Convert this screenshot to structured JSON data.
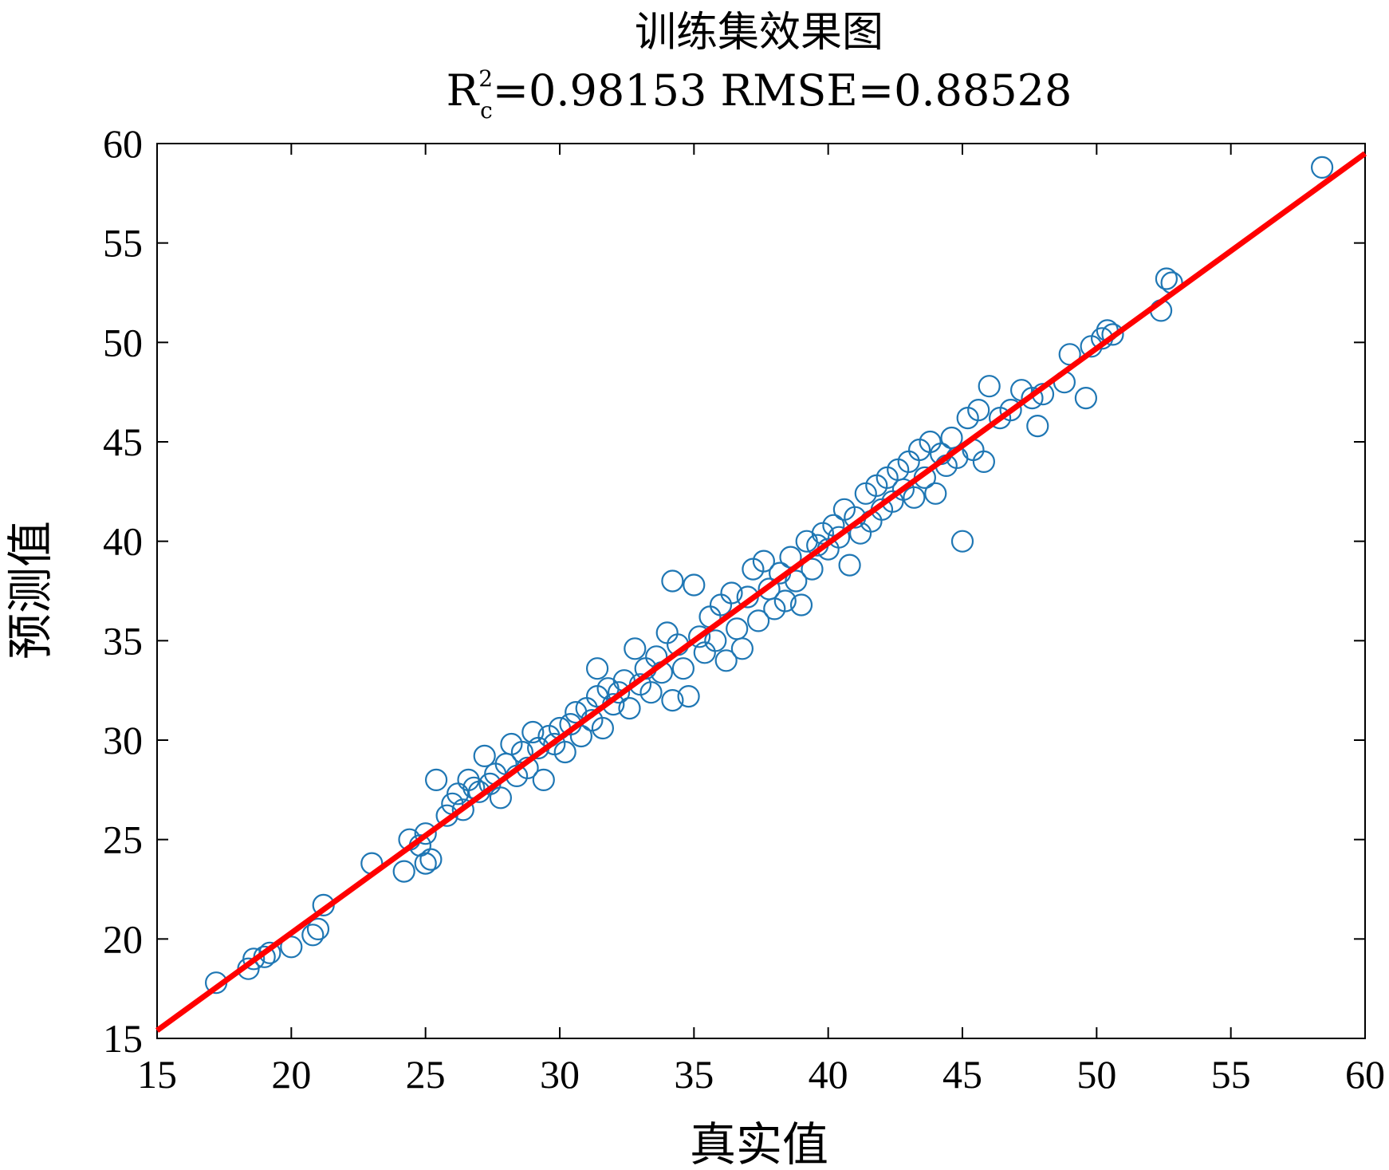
{
  "chart_data": {
    "type": "scatter",
    "title": "训练集效果图",
    "subtitle": {
      "r_label": "R",
      "r_sub": "c",
      "r_sup": "2",
      "r_value": "=0.98153 RMSE=0.88528"
    },
    "xlabel": "真实值",
    "ylabel": "预测值",
    "xlim": [
      15,
      60
    ],
    "ylim": [
      15,
      60
    ],
    "xticks": [
      15,
      20,
      25,
      30,
      35,
      40,
      45,
      50,
      55,
      60
    ],
    "yticks": [
      15,
      20,
      25,
      30,
      35,
      40,
      45,
      50,
      55,
      60
    ],
    "grid": false,
    "colors": {
      "points": "#1f77b4",
      "fit_line": "#ff0000",
      "axes": "#000000"
    },
    "fit_line": {
      "x": [
        15,
        60
      ],
      "y": [
        15.4,
        59.5
      ]
    },
    "series": [
      {
        "type": "scatter",
        "marker": "circle-open",
        "points": [
          [
            17.2,
            17.8
          ],
          [
            18.4,
            18.5
          ],
          [
            18.6,
            19.0
          ],
          [
            19.0,
            19.1
          ],
          [
            19.2,
            19.3
          ],
          [
            20.0,
            19.6
          ],
          [
            20.8,
            20.2
          ],
          [
            21.0,
            20.5
          ],
          [
            21.2,
            21.7
          ],
          [
            23.0,
            23.8
          ],
          [
            24.2,
            23.4
          ],
          [
            24.4,
            25.0
          ],
          [
            24.8,
            24.7
          ],
          [
            25.0,
            25.3
          ],
          [
            25.0,
            23.8
          ],
          [
            25.2,
            24.0
          ],
          [
            25.4,
            28.0
          ],
          [
            25.8,
            26.2
          ],
          [
            26.0,
            26.8
          ],
          [
            26.2,
            27.3
          ],
          [
            26.4,
            26.5
          ],
          [
            26.6,
            28.0
          ],
          [
            26.8,
            27.6
          ],
          [
            27.0,
            27.4
          ],
          [
            27.2,
            29.2
          ],
          [
            27.4,
            27.8
          ],
          [
            27.6,
            28.3
          ],
          [
            27.8,
            27.1
          ],
          [
            28.0,
            28.8
          ],
          [
            28.2,
            29.8
          ],
          [
            28.4,
            28.2
          ],
          [
            28.6,
            29.4
          ],
          [
            28.8,
            28.6
          ],
          [
            29.0,
            30.4
          ],
          [
            29.2,
            29.6
          ],
          [
            29.4,
            28.0
          ],
          [
            29.6,
            30.2
          ],
          [
            29.8,
            29.8
          ],
          [
            30.0,
            30.6
          ],
          [
            30.2,
            29.4
          ],
          [
            30.4,
            30.8
          ],
          [
            30.6,
            31.4
          ],
          [
            30.8,
            30.2
          ],
          [
            31.0,
            31.6
          ],
          [
            31.2,
            31.0
          ],
          [
            31.4,
            32.2
          ],
          [
            31.6,
            30.6
          ],
          [
            31.8,
            32.6
          ],
          [
            31.4,
            33.6
          ],
          [
            32.0,
            31.8
          ],
          [
            32.2,
            32.4
          ],
          [
            32.4,
            33.0
          ],
          [
            32.6,
            31.6
          ],
          [
            32.8,
            34.6
          ],
          [
            33.0,
            32.8
          ],
          [
            33.2,
            33.6
          ],
          [
            33.4,
            32.4
          ],
          [
            33.6,
            34.2
          ],
          [
            33.8,
            33.4
          ],
          [
            34.0,
            35.4
          ],
          [
            34.2,
            32.0
          ],
          [
            34.4,
            34.8
          ],
          [
            34.6,
            33.6
          ],
          [
            34.8,
            32.2
          ],
          [
            34.2,
            38.0
          ],
          [
            35.0,
            37.8
          ],
          [
            35.2,
            35.2
          ],
          [
            35.4,
            34.4
          ],
          [
            35.6,
            36.2
          ],
          [
            35.8,
            35.0
          ],
          [
            36.0,
            36.8
          ],
          [
            36.2,
            34.0
          ],
          [
            36.4,
            37.4
          ],
          [
            36.6,
            35.6
          ],
          [
            36.8,
            34.6
          ],
          [
            37.0,
            37.2
          ],
          [
            37.2,
            38.6
          ],
          [
            37.4,
            36.0
          ],
          [
            37.6,
            39.0
          ],
          [
            37.8,
            37.6
          ],
          [
            38.0,
            36.6
          ],
          [
            38.2,
            38.4
          ],
          [
            38.4,
            37.0
          ],
          [
            38.6,
            39.2
          ],
          [
            38.8,
            38.0
          ],
          [
            39.0,
            36.8
          ],
          [
            39.2,
            40.0
          ],
          [
            39.4,
            38.6
          ],
          [
            39.6,
            39.8
          ],
          [
            39.8,
            40.4
          ],
          [
            40.0,
            39.6
          ],
          [
            40.2,
            40.8
          ],
          [
            40.4,
            40.2
          ],
          [
            40.6,
            41.6
          ],
          [
            40.8,
            38.8
          ],
          [
            41.0,
            41.2
          ],
          [
            41.2,
            40.4
          ],
          [
            41.4,
            42.4
          ],
          [
            41.6,
            41.0
          ],
          [
            41.8,
            42.8
          ],
          [
            42.0,
            41.6
          ],
          [
            42.2,
            43.2
          ],
          [
            42.4,
            42.0
          ],
          [
            42.6,
            43.6
          ],
          [
            42.8,
            42.6
          ],
          [
            43.0,
            44.0
          ],
          [
            43.2,
            42.2
          ],
          [
            43.4,
            44.6
          ],
          [
            43.6,
            43.2
          ],
          [
            43.8,
            45.0
          ],
          [
            44.0,
            42.4
          ],
          [
            44.2,
            44.4
          ],
          [
            44.4,
            43.8
          ],
          [
            44.6,
            45.2
          ],
          [
            44.8,
            44.2
          ],
          [
            45.0,
            40.0
          ],
          [
            45.2,
            46.2
          ],
          [
            45.4,
            44.6
          ],
          [
            45.6,
            46.6
          ],
          [
            45.8,
            44.0
          ],
          [
            46.0,
            47.8
          ],
          [
            46.4,
            46.2
          ],
          [
            46.8,
            46.6
          ],
          [
            47.2,
            47.6
          ],
          [
            47.6,
            47.2
          ],
          [
            47.8,
            45.8
          ],
          [
            48.0,
            47.4
          ],
          [
            48.8,
            48.0
          ],
          [
            49.0,
            49.4
          ],
          [
            49.6,
            47.2
          ],
          [
            49.8,
            49.8
          ],
          [
            50.2,
            50.2
          ],
          [
            50.4,
            50.6
          ],
          [
            50.6,
            50.4
          ],
          [
            52.4,
            51.6
          ],
          [
            52.6,
            53.2
          ],
          [
            52.8,
            53.0
          ],
          [
            58.4,
            58.8
          ]
        ]
      }
    ]
  }
}
